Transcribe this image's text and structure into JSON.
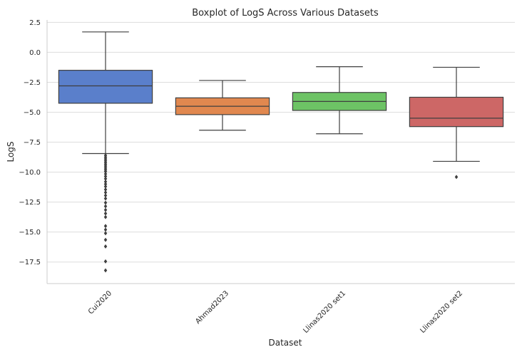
{
  "chart_data": {
    "type": "box",
    "title": "Boxplot of LogS Across Various Datasets",
    "xlabel": "Dataset",
    "ylabel": "LogS",
    "ylim": [
      -19.3,
      2.7
    ],
    "yticks": [
      2.5,
      0.0,
      -2.5,
      -5.0,
      -7.5,
      -10.0,
      -12.5,
      -15.0,
      -17.5
    ],
    "ytick_labels": [
      "2.5",
      "0.0",
      "−2.5",
      "−5.0",
      "−7.5",
      "−10.0",
      "−12.5",
      "−15.0",
      "−17.5"
    ],
    "grid": "horizontal",
    "categories": [
      "Cui2020",
      "Ahmad2023",
      "Llinas2020 set1",
      "Llinas2020 set2"
    ],
    "boxes": [
      {
        "category": "Cui2020",
        "color": "#5a7fcb",
        "whisker_high": 1.7,
        "q3": -1.5,
        "median": -2.8,
        "q1": -4.25,
        "whisker_low": -8.45,
        "outliers": [
          -8.6,
          -8.75,
          -8.9,
          -9.05,
          -9.2,
          -9.35,
          -9.5,
          -9.65,
          -9.8,
          -9.95,
          -10.15,
          -10.35,
          -10.55,
          -10.8,
          -11.0,
          -11.2,
          -11.45,
          -11.7,
          -11.95,
          -12.2,
          -12.55,
          -12.85,
          -13.15,
          -13.45,
          -13.75,
          -14.5,
          -14.8,
          -15.1,
          -15.65,
          -16.2,
          -17.45,
          -18.2
        ]
      },
      {
        "category": "Ahmad2023",
        "color": "#e1884f",
        "whisker_high": -2.35,
        "q3": -3.8,
        "median": -4.5,
        "q1": -5.2,
        "whisker_low": -6.5,
        "outliers": []
      },
      {
        "category": "Llinas2020 set1",
        "color": "#6dc365",
        "whisker_high": -1.2,
        "q3": -3.35,
        "median": -4.1,
        "q1": -4.85,
        "whisker_low": -6.8,
        "outliers": []
      },
      {
        "category": "Llinas2020 set2",
        "color": "#cd6766",
        "whisker_high": -1.25,
        "q3": -3.75,
        "median": -5.5,
        "q1": -6.2,
        "whisker_low": -9.1,
        "outliers": [
          -10.4
        ]
      }
    ]
  }
}
